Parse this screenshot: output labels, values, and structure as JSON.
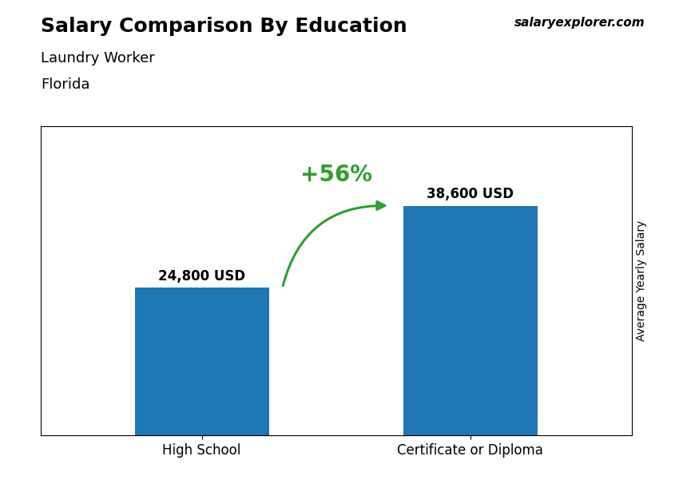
{
  "chart_data": {
    "type": "bar",
    "title": "Salary Comparison By Education",
    "subtitle": [
      "Laundry Worker",
      "Florida"
    ],
    "categories": [
      "High School",
      "Certificate or Diploma"
    ],
    "values": [
      24800,
      38600
    ],
    "value_labels": [
      "24,800 USD",
      "38,600 USD"
    ],
    "data_labels": true,
    "ylabel": "Average Yearly Salary",
    "annotations": [
      "+56%",
      "salaryexplorer.com"
    ],
    "ylim": [
      0,
      52000
    ],
    "yticks": [],
    "tick_labels": "x",
    "grid": false
  }
}
